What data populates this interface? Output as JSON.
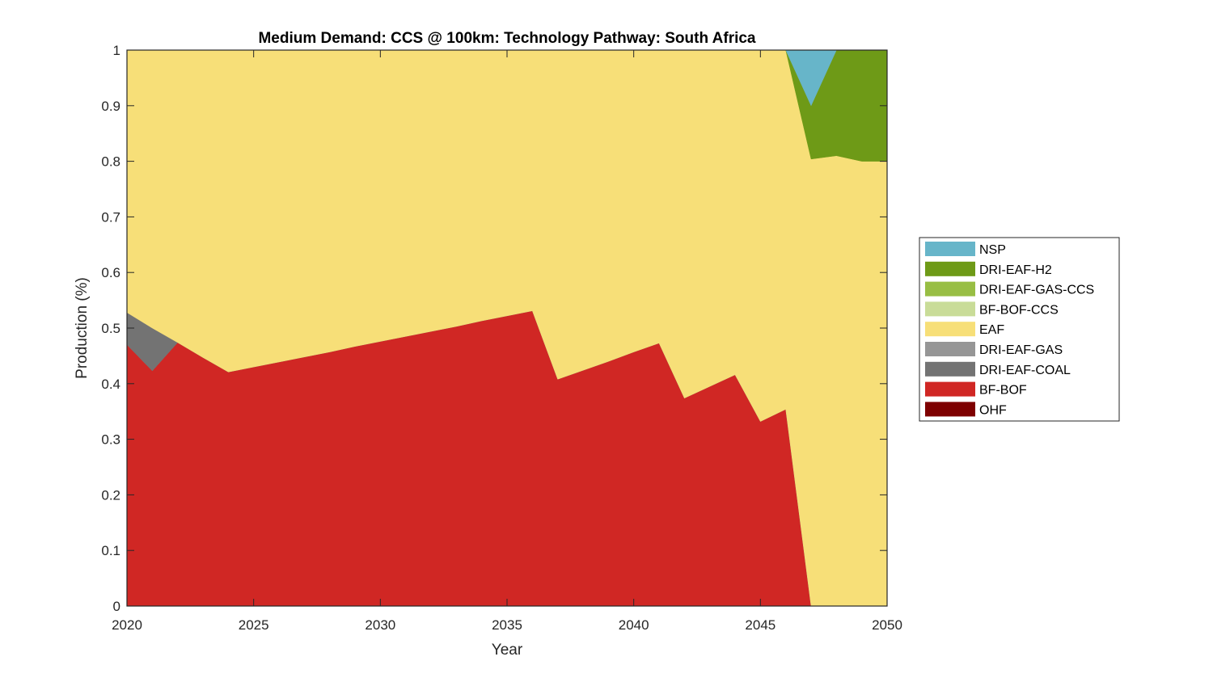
{
  "chart_data": {
    "type": "area",
    "stacked": true,
    "title": "Medium Demand: CCS @ 100km: Technology Pathway: South Africa",
    "xlabel": "Year",
    "ylabel": "Production (%)",
    "xlim": [
      2020,
      2050
    ],
    "ylim": [
      0,
      1
    ],
    "xticks": [
      "2020",
      "2025",
      "2030",
      "2035",
      "2040",
      "2045",
      "2050"
    ],
    "yticks": [
      "0",
      "0.1",
      "0.2",
      "0.3",
      "0.4",
      "0.5",
      "0.6",
      "0.7",
      "0.8",
      "0.9",
      "1"
    ],
    "legend_position": "right",
    "x": [
      2020,
      2021,
      2022,
      2023,
      2024,
      2025,
      2026,
      2027,
      2028,
      2029,
      2030,
      2031,
      2032,
      2033,
      2034,
      2035,
      2036,
      2037,
      2038,
      2039,
      2040,
      2041,
      2042,
      2043,
      2044,
      2045,
      2046,
      2047,
      2048,
      2049,
      2050
    ],
    "series": [
      {
        "name": "OHF",
        "color": "#7e0000",
        "values": [
          0,
          0,
          0,
          0,
          0,
          0,
          0,
          0,
          0,
          0,
          0,
          0,
          0,
          0,
          0,
          0,
          0,
          0,
          0,
          0,
          0,
          0,
          0,
          0,
          0,
          0,
          0,
          0,
          0,
          0,
          0
        ]
      },
      {
        "name": "BF-BOF",
        "color": "#d02724",
        "values": [
          0.47,
          0.423,
          0.474,
          0.447,
          0.421,
          0.43,
          0.439,
          0.448,
          0.457,
          0.467,
          0.476,
          0.485,
          0.494,
          0.503,
          0.513,
          0.522,
          0.531,
          0.408,
          0.424,
          0.44,
          0.457,
          0.473,
          0.374,
          0.395,
          0.416,
          0.332,
          0.354,
          0,
          0,
          0,
          0
        ]
      },
      {
        "name": "DRI-EAF-COAL",
        "color": "#737373",
        "values": [
          0.058,
          0.077,
          0,
          0,
          0,
          0,
          0,
          0,
          0,
          0,
          0,
          0,
          0,
          0,
          0,
          0,
          0,
          0,
          0,
          0,
          0,
          0,
          0,
          0,
          0,
          0,
          0,
          0,
          0,
          0,
          0
        ]
      },
      {
        "name": "DRI-EAF-GAS",
        "color": "#969696",
        "values": [
          0,
          0,
          0,
          0,
          0,
          0,
          0,
          0,
          0,
          0,
          0,
          0,
          0,
          0,
          0,
          0,
          0,
          0,
          0,
          0,
          0,
          0,
          0,
          0,
          0,
          0,
          0,
          0,
          0,
          0,
          0
        ]
      },
      {
        "name": "EAF",
        "color": "#f7df78",
        "values": [
          0.472,
          0.5,
          0.526,
          0.553,
          0.579,
          0.57,
          0.561,
          0.552,
          0.543,
          0.533,
          0.524,
          0.515,
          0.506,
          0.497,
          0.487,
          0.478,
          0.469,
          0.592,
          0.576,
          0.56,
          0.543,
          0.527,
          0.626,
          0.605,
          0.584,
          0.668,
          0.646,
          0.804,
          0.81,
          0.8,
          0.8
        ]
      },
      {
        "name": "BF-BOF-CCS",
        "color": "#c9dc98",
        "values": [
          0,
          0,
          0,
          0,
          0,
          0,
          0,
          0,
          0,
          0,
          0,
          0,
          0,
          0,
          0,
          0,
          0,
          0,
          0,
          0,
          0,
          0,
          0,
          0,
          0,
          0,
          0,
          0,
          0,
          0,
          0
        ]
      },
      {
        "name": "DRI-EAF-GAS-CCS",
        "color": "#98be44",
        "values": [
          0,
          0,
          0,
          0,
          0,
          0,
          0,
          0,
          0,
          0,
          0,
          0,
          0,
          0,
          0,
          0,
          0,
          0,
          0,
          0,
          0,
          0,
          0,
          0,
          0,
          0,
          0,
          0,
          0,
          0,
          0
        ]
      },
      {
        "name": "DRI-EAF-H2",
        "color": "#6e9a17",
        "values": [
          0,
          0,
          0,
          0,
          0,
          0,
          0,
          0,
          0,
          0,
          0,
          0,
          0,
          0,
          0,
          0,
          0,
          0,
          0,
          0,
          0,
          0,
          0,
          0,
          0,
          0,
          0,
          0.096,
          0.19,
          0.2,
          0.2
        ]
      },
      {
        "name": "NSP",
        "color": "#67b5c9",
        "values": [
          0,
          0,
          0,
          0,
          0,
          0,
          0,
          0,
          0,
          0,
          0,
          0,
          0,
          0,
          0,
          0,
          0,
          0,
          0,
          0,
          0,
          0,
          0,
          0,
          0,
          0,
          0,
          0.1,
          0,
          0,
          0
        ]
      }
    ],
    "legend_order": [
      "NSP",
      "DRI-EAF-H2",
      "DRI-EAF-GAS-CCS",
      "BF-BOF-CCS",
      "EAF",
      "DRI-EAF-GAS",
      "DRI-EAF-COAL",
      "BF-BOF",
      "OHF"
    ]
  }
}
